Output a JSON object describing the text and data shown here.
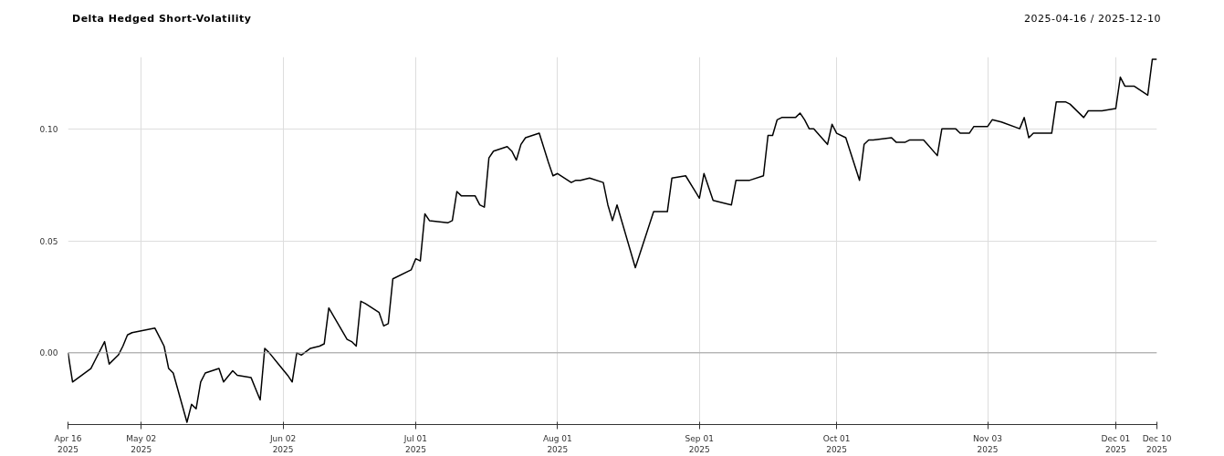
{
  "chart_data": {
    "type": "line",
    "title": "Delta Hedged Short-Volatility",
    "subtitle": "2025-04-16 / 2025-12-10",
    "x": [
      "2025-04-16",
      "2025-04-17",
      "2025-04-21",
      "2025-04-22",
      "2025-04-24",
      "2025-04-25",
      "2025-04-27",
      "2025-04-28",
      "2025-04-29",
      "2025-04-30",
      "2025-05-05",
      "2025-05-06",
      "2025-05-07",
      "2025-05-08",
      "2025-05-09",
      "2025-05-12",
      "2025-05-13",
      "2025-05-14",
      "2025-05-15",
      "2025-05-16",
      "2025-05-19",
      "2025-05-20",
      "2025-05-22",
      "2025-05-23",
      "2025-05-26",
      "2025-05-27",
      "2025-05-28",
      "2025-05-29",
      "2025-05-30",
      "2025-06-01",
      "2025-06-03",
      "2025-06-04",
      "2025-06-05",
      "2025-06-06",
      "2025-06-08",
      "2025-06-10",
      "2025-06-11",
      "2025-06-12",
      "2025-06-16",
      "2025-06-17",
      "2025-06-18",
      "2025-06-19",
      "2025-06-20",
      "2025-06-23",
      "2025-06-24",
      "2025-06-25",
      "2025-06-26",
      "2025-06-30",
      "2025-07-01",
      "2025-07-02",
      "2025-07-03",
      "2025-07-04",
      "2025-07-08",
      "2025-07-09",
      "2025-07-10",
      "2025-07-11",
      "2025-07-14",
      "2025-07-15",
      "2025-07-16",
      "2025-07-17",
      "2025-07-18",
      "2025-07-21",
      "2025-07-22",
      "2025-07-23",
      "2025-07-24",
      "2025-07-25",
      "2025-07-28",
      "2025-07-30",
      "2025-07-31",
      "2025-08-01",
      "2025-08-04",
      "2025-08-05",
      "2025-08-06",
      "2025-08-08",
      "2025-08-11",
      "2025-08-12",
      "2025-08-13",
      "2025-08-14",
      "2025-08-18",
      "2025-08-22",
      "2025-08-25",
      "2025-08-26",
      "2025-08-29",
      "2025-09-01",
      "2025-09-02",
      "2025-09-04",
      "2025-09-08",
      "2025-09-09",
      "2025-09-12",
      "2025-09-15",
      "2025-09-16",
      "2025-09-17",
      "2025-09-18",
      "2025-09-19",
      "2025-09-22",
      "2025-09-23",
      "2025-09-24",
      "2025-09-25",
      "2025-09-26",
      "2025-09-29",
      "2025-09-30",
      "2025-10-01",
      "2025-10-03",
      "2025-10-06",
      "2025-10-07",
      "2025-10-08",
      "2025-10-09",
      "2025-10-13",
      "2025-10-14",
      "2025-10-16",
      "2025-10-17",
      "2025-10-20",
      "2025-10-23",
      "2025-10-24",
      "2025-10-27",
      "2025-10-28",
      "2025-10-30",
      "2025-10-31",
      "2025-11-03",
      "2025-11-04",
      "2025-11-06",
      "2025-11-10",
      "2025-11-11",
      "2025-11-12",
      "2025-11-13",
      "2025-11-14",
      "2025-11-17",
      "2025-11-18",
      "2025-11-20",
      "2025-11-21",
      "2025-11-24",
      "2025-11-25",
      "2025-11-28",
      "2025-12-01",
      "2025-12-02",
      "2025-12-03",
      "2025-12-05",
      "2025-12-08",
      "2025-12-09",
      "2025-12-10"
    ],
    "series": [
      {
        "color": "#000000",
        "values": [
          0.0,
          -0.013,
          -0.007,
          -0.003,
          0.005,
          -0.005,
          -0.001,
          0.003,
          0.008,
          0.009,
          0.011,
          0.007,
          0.003,
          -0.007,
          -0.009,
          -0.031,
          -0.023,
          -0.025,
          -0.013,
          -0.009,
          -0.007,
          -0.013,
          -0.008,
          -0.01,
          -0.011,
          -0.016,
          -0.021,
          0.002,
          0.0,
          -0.005,
          -0.01,
          -0.013,
          0.0,
          -0.001,
          0.002,
          0.003,
          0.004,
          0.02,
          0.006,
          0.005,
          0.003,
          0.023,
          0.022,
          0.018,
          0.012,
          0.013,
          0.033,
          0.037,
          0.042,
          0.041,
          0.062,
          0.059,
          0.058,
          0.059,
          0.072,
          0.07,
          0.07,
          0.066,
          0.065,
          0.087,
          0.09,
          0.092,
          0.09,
          0.086,
          0.093,
          0.096,
          0.098,
          0.085,
          0.079,
          0.08,
          0.076,
          0.077,
          0.077,
          0.078,
          0.076,
          0.066,
          0.059,
          0.066,
          0.038,
          0.063,
          0.063,
          0.078,
          0.079,
          0.069,
          0.08,
          0.068,
          0.066,
          0.077,
          0.077,
          0.079,
          0.097,
          0.097,
          0.104,
          0.105,
          0.105,
          0.107,
          0.104,
          0.1,
          0.1,
          0.093,
          0.102,
          0.098,
          0.096,
          0.077,
          0.093,
          0.095,
          0.095,
          0.096,
          0.094,
          0.094,
          0.095,
          0.095,
          0.088,
          0.1,
          0.1,
          0.098,
          0.098,
          0.101,
          0.101,
          0.104,
          0.103,
          0.1,
          0.105,
          0.096,
          0.098,
          0.098,
          0.098,
          0.112,
          0.112,
          0.111,
          0.105,
          0.108,
          0.108,
          0.109,
          0.123,
          0.119,
          0.119,
          0.115,
          0.131,
          0.131
        ]
      }
    ],
    "xlim": [
      "2025-04-16",
      "2025-12-10"
    ],
    "xticks": [
      {
        "value": "2025-04-16",
        "label": "Apr 16\n2025"
      },
      {
        "value": "2025-05-02",
        "label": "May 02\n2025"
      },
      {
        "value": "2025-06-02",
        "label": "Jun 02\n2025"
      },
      {
        "value": "2025-07-01",
        "label": "Jul 01\n2025"
      },
      {
        "value": "2025-08-01",
        "label": "Aug 01\n2025"
      },
      {
        "value": "2025-09-01",
        "label": "Sep 01\n2025"
      },
      {
        "value": "2025-10-01",
        "label": "Oct 01\n2025"
      },
      {
        "value": "2025-11-03",
        "label": "Nov 03\n2025"
      },
      {
        "value": "2025-12-01",
        "label": "Dec 01\n2025"
      },
      {
        "value": "2025-12-10",
        "label": "Dec 10\n2025"
      }
    ],
    "ylim": [
      -0.032,
      0.132
    ],
    "yticks": [
      {
        "value": 0,
        "label": "0.00"
      },
      {
        "value": 0.05,
        "label": "0.05"
      },
      {
        "value": 0.1,
        "label": "0.10"
      }
    ],
    "ref_lines": [
      {
        "axis": "y",
        "value": 0,
        "color": "#a0a0a0"
      }
    ],
    "grid": true,
    "marker": "none",
    "line_style": "solid"
  }
}
